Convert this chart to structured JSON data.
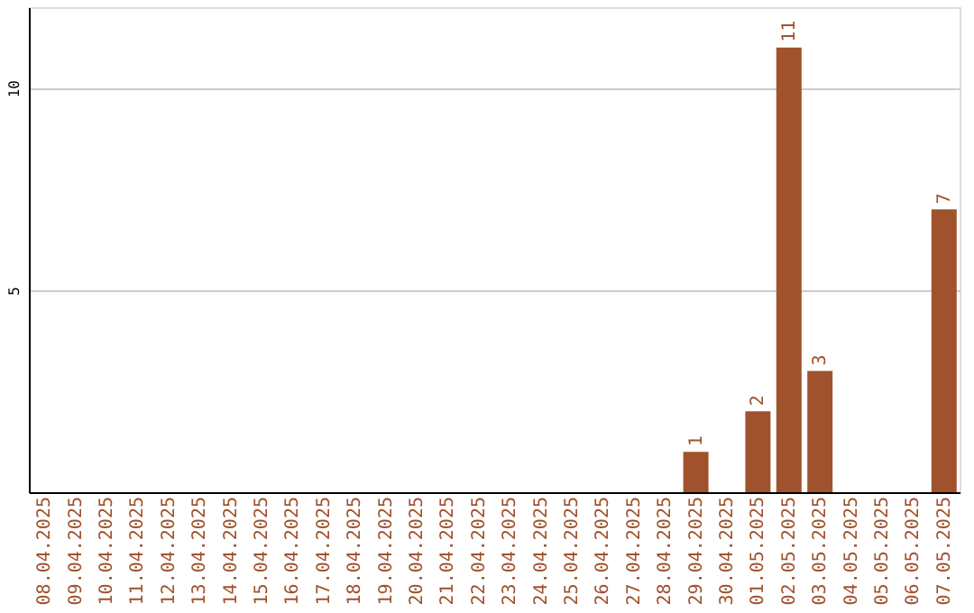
{
  "chart_data": {
    "type": "bar",
    "categories": [
      "08.04.2025",
      "09.04.2025",
      "10.04.2025",
      "11.04.2025",
      "12.04.2025",
      "13.04.2025",
      "14.04.2025",
      "15.04.2025",
      "16.04.2025",
      "17.04.2025",
      "18.04.2025",
      "19.04.2025",
      "20.04.2025",
      "21.04.2025",
      "22.04.2025",
      "23.04.2025",
      "24.04.2025",
      "25.04.2025",
      "26.04.2025",
      "27.04.2025",
      "28.04.2025",
      "29.04.2025",
      "30.04.2025",
      "01.05.2025",
      "02.05.2025",
      "03.05.2025",
      "04.05.2025",
      "05.05.2025",
      "06.05.2025",
      "07.05.2025"
    ],
    "values": [
      0,
      0,
      0,
      0,
      0,
      0,
      0,
      0,
      0,
      0,
      0,
      0,
      0,
      0,
      0,
      0,
      0,
      0,
      0,
      0,
      0,
      1,
      0,
      2,
      11,
      3,
      0,
      0,
      0,
      7
    ],
    "value_labels": [
      null,
      null,
      null,
      null,
      null,
      null,
      null,
      null,
      null,
      null,
      null,
      null,
      null,
      null,
      null,
      null,
      null,
      null,
      null,
      null,
      null,
      "1",
      null,
      "2",
      "11",
      "3",
      null,
      null,
      null,
      "7"
    ],
    "color": "#a0522d",
    "ylim": [
      0,
      12
    ],
    "yticks": [
      5,
      10
    ],
    "grid": "y"
  }
}
